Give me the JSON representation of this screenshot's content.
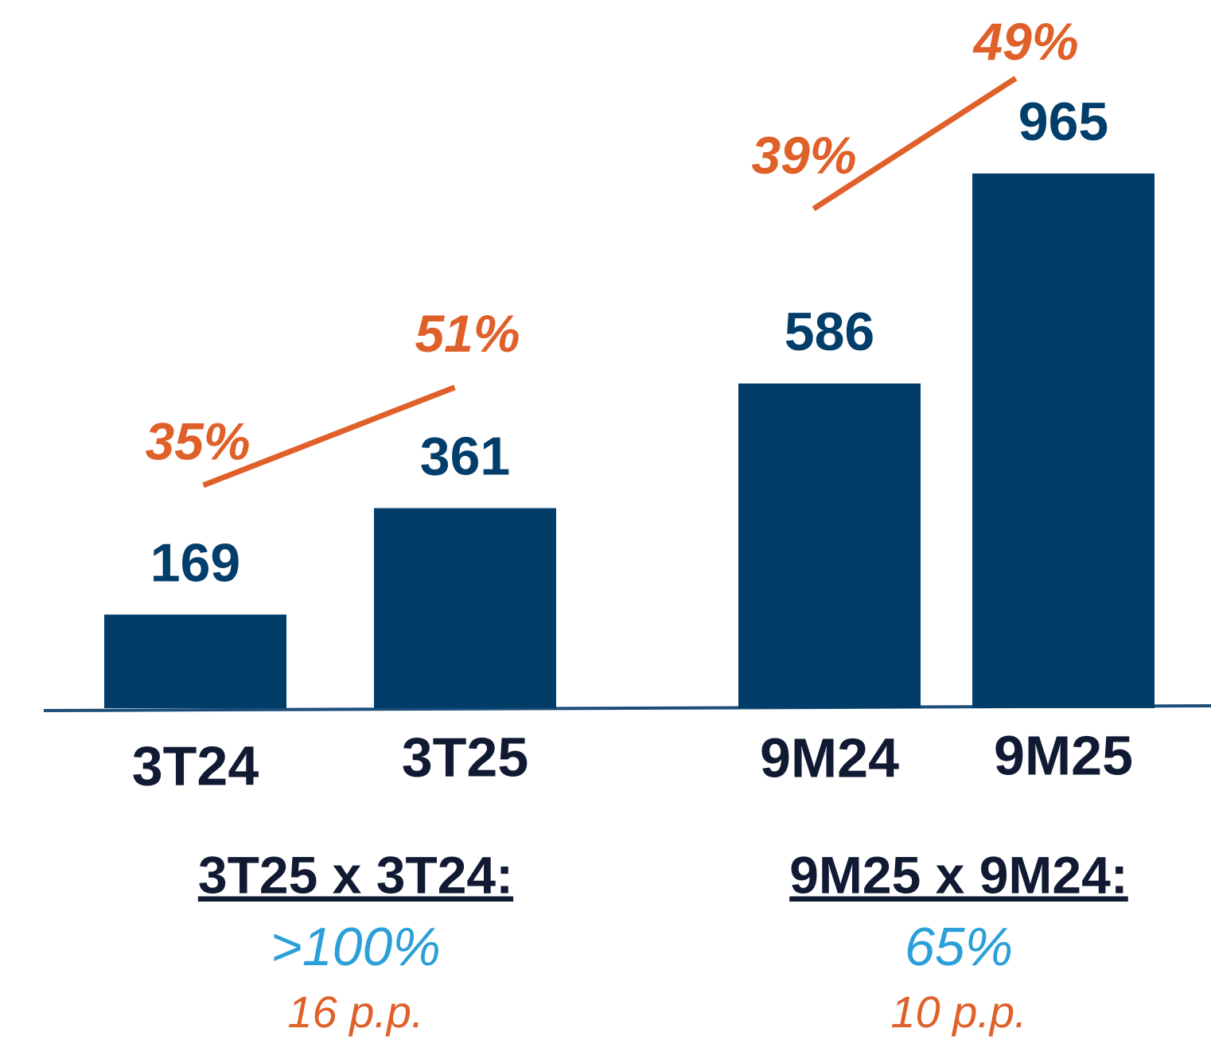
{
  "chart_data": {
    "type": "bar",
    "color": "#023d6a",
    "line_color": "#e0602a",
    "groups": [
      {
        "categories": [
          "3T24",
          "3T25"
        ],
        "values": [
          169,
          361
        ],
        "margin": [
          35,
          51
        ],
        "margin_labels": [
          "35%",
          "51%"
        ],
        "comparison": {
          "title": "3T25 x 3T24:",
          "growth": ">100%",
          "pp": "16 p.p."
        }
      },
      {
        "categories": [
          "9M24",
          "9M25"
        ],
        "values": [
          586,
          965
        ],
        "margin": [
          39,
          49
        ],
        "margin_labels": [
          "39%",
          "49%"
        ],
        "comparison": {
          "title": "9M25 x 9M24:",
          "growth": "65%",
          "pp": "10 p.p."
        }
      }
    ]
  }
}
